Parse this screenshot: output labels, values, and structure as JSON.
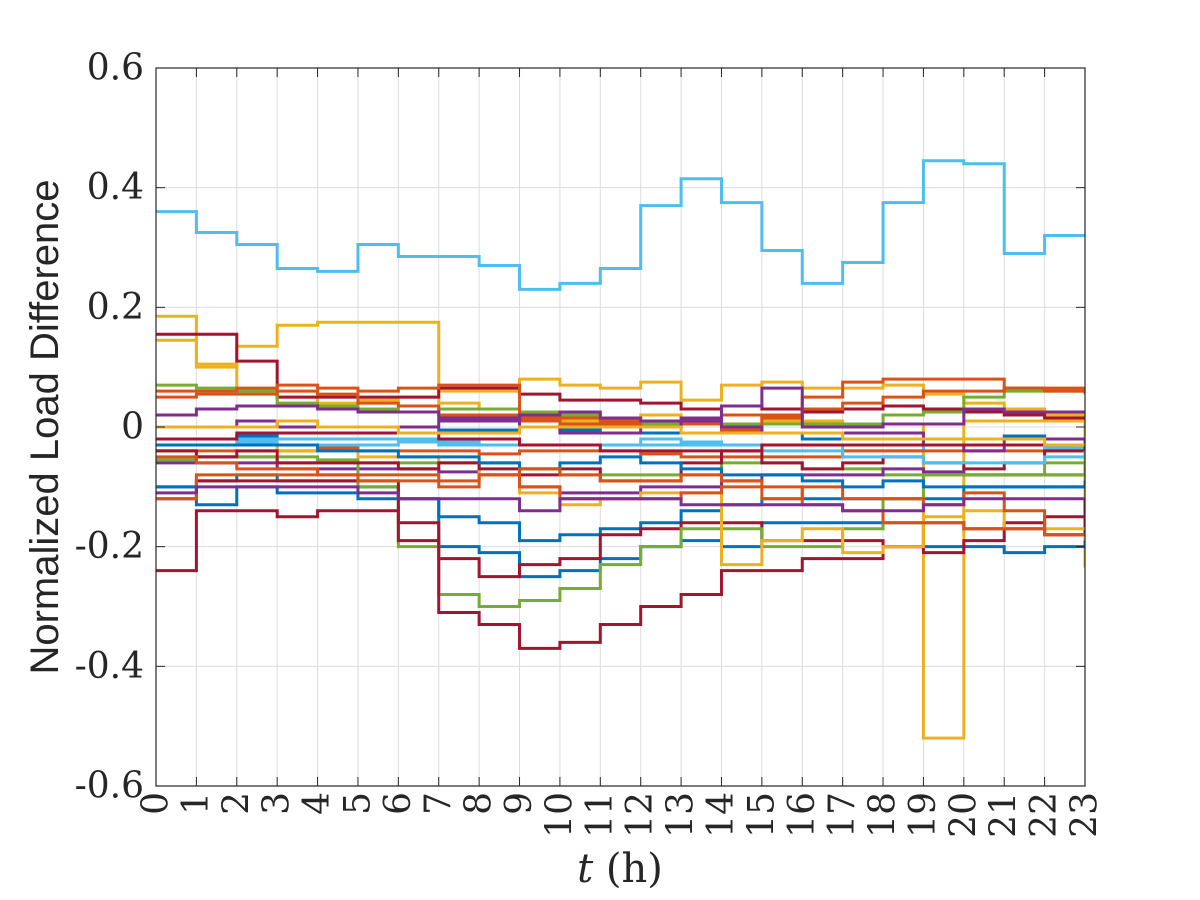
{
  "chart_data": {
    "type": "line",
    "step": true,
    "xlabel_var": "t",
    "xlabel_unit": " (h)",
    "ylabel": "Normalized Load Difference",
    "xlim": [
      0,
      23
    ],
    "ylim": [
      -0.6,
      0.6
    ],
    "x_ticks": [
      "0",
      "1",
      "2",
      "3",
      "4",
      "5",
      "6",
      "7",
      "8",
      "9",
      "10",
      "11",
      "12",
      "13",
      "14",
      "15",
      "16",
      "17",
      "18",
      "19",
      "20",
      "21",
      "22",
      "23"
    ],
    "y_ticks": [
      "0.6",
      "0.4",
      "0.2",
      "0",
      "-0.2",
      "-0.4",
      "-0.6"
    ],
    "y_tick_values": [
      0.6,
      0.4,
      0.2,
      0,
      -0.2,
      -0.4,
      -0.6
    ],
    "grid": true,
    "box": true,
    "colors": {
      "blue": "#0072bd",
      "orange": "#d95319",
      "yellow": "#edb120",
      "purple": "#7e2f8e",
      "green": "#77ac30",
      "cyan": "#4dbeee",
      "red": "#a2142f"
    },
    "series": [
      {
        "color": "cyan",
        "values": [
          0.36,
          0.325,
          0.305,
          0.265,
          0.26,
          0.305,
          0.285,
          0.285,
          0.27,
          0.23,
          0.24,
          0.265,
          0.37,
          0.415,
          0.375,
          0.295,
          0.24,
          0.275,
          0.375,
          0.445,
          0.44,
          0.29,
          0.32,
          0.32
        ]
      },
      {
        "color": "yellow",
        "values": [
          0.185,
          0.1,
          0.135,
          0.17,
          0.175,
          0.175,
          0.175,
          0.04,
          0.03,
          0.025,
          0.01,
          0.005,
          0.02,
          0.005,
          0.005,
          0.01,
          0.01,
          0.005,
          0.005,
          -0.52,
          0.01,
          0.01,
          0.01,
          -0.235
        ]
      },
      {
        "color": "yellow",
        "values": [
          0.145,
          0.105,
          0.06,
          0.05,
          0.04,
          0.045,
          0.05,
          0.06,
          0.06,
          0.08,
          0.07,
          0.065,
          0.075,
          0.045,
          0.07,
          0.075,
          0.065,
          0.065,
          0.07,
          0.055,
          0.04,
          0.03,
          0.02,
          -0.02
        ]
      },
      {
        "color": "red",
        "values": [
          0.155,
          0.155,
          0.11,
          0.05,
          0.05,
          0.05,
          0.05,
          0.065,
          0.065,
          0.055,
          0.045,
          0.045,
          0.04,
          0.03,
          0.035,
          0.03,
          0.025,
          0.03,
          0.035,
          0.03,
          0.025,
          0.02,
          0.015,
          0.015
        ]
      },
      {
        "color": "green",
        "values": [
          0.07,
          0.065,
          0.06,
          0.04,
          0.035,
          0.03,
          0.025,
          0.03,
          0.03,
          0.025,
          0.02,
          0.01,
          0.005,
          0.005,
          0.005,
          0.005,
          0.005,
          0.005,
          0.02,
          0.025,
          0.05,
          0.06,
          0.06,
          0.055
        ]
      },
      {
        "color": "orange",
        "values": [
          0.06,
          0.06,
          0.065,
          0.07,
          0.065,
          0.06,
          0.065,
          0.07,
          0.07,
          0.015,
          0.015,
          0.01,
          0.01,
          0.005,
          0.02,
          0.015,
          0.05,
          0.075,
          0.08,
          0.08,
          0.08,
          0.065,
          0.065,
          0.06
        ]
      },
      {
        "color": "orange",
        "values": [
          0.05,
          0.055,
          0.055,
          0.06,
          0.055,
          0.04,
          0.035,
          0.02,
          0.02,
          0.01,
          0.005,
          0.005,
          0.0,
          0.005,
          -0.005,
          0.02,
          0.03,
          0.04,
          0.05,
          0.06,
          0.06,
          0.065,
          0.06,
          0.055
        ]
      },
      {
        "color": "purple",
        "values": [
          0.02,
          0.03,
          0.035,
          0.035,
          0.03,
          0.025,
          0.025,
          0.015,
          0.015,
          0.02,
          0.025,
          0.015,
          0.01,
          0.015,
          0.035,
          0.065,
          0.0,
          0.0,
          0.005,
          0.005,
          0.03,
          0.025,
          0.025,
          0.025
        ]
      },
      {
        "color": "blue",
        "values": [
          -0.02,
          -0.02,
          -0.015,
          -0.01,
          -0.01,
          -0.01,
          -0.01,
          -0.005,
          -0.005,
          0.0,
          -0.005,
          -0.01,
          -0.01,
          -0.01,
          -0.01,
          -0.01,
          -0.02,
          -0.02,
          -0.02,
          -0.02,
          -0.02,
          -0.015,
          -0.02,
          -0.02
        ]
      },
      {
        "color": "cyan",
        "values": [
          -0.03,
          -0.03,
          -0.025,
          -0.03,
          -0.03,
          -0.03,
          -0.025,
          -0.025,
          -0.03,
          -0.03,
          -0.03,
          -0.03,
          -0.02,
          -0.025,
          -0.03,
          -0.03,
          -0.03,
          -0.04,
          -0.04,
          -0.03,
          -0.03,
          -0.03,
          -0.035,
          -0.035
        ]
      },
      {
        "color": "orange",
        "values": [
          -0.04,
          -0.04,
          -0.04,
          -0.04,
          -0.035,
          -0.04,
          -0.04,
          -0.04,
          -0.045,
          -0.04,
          -0.04,
          -0.04,
          -0.045,
          -0.05,
          -0.05,
          -0.05,
          -0.05,
          -0.04,
          -0.04,
          -0.04,
          -0.04,
          -0.04,
          -0.04,
          -0.04
        ]
      },
      {
        "color": "green",
        "values": [
          -0.055,
          -0.05,
          -0.05,
          -0.05,
          -0.055,
          -0.06,
          -0.06,
          -0.06,
          -0.06,
          -0.07,
          -0.08,
          -0.08,
          -0.08,
          -0.08,
          -0.06,
          -0.06,
          -0.07,
          -0.07,
          -0.08,
          -0.08,
          -0.08,
          -0.08,
          -0.06,
          -0.06
        ]
      },
      {
        "color": "purple",
        "values": [
          -0.06,
          -0.06,
          -0.06,
          -0.07,
          -0.07,
          -0.07,
          -0.07,
          -0.075,
          -0.08,
          -0.1,
          -0.11,
          -0.11,
          -0.1,
          -0.1,
          -0.09,
          -0.08,
          -0.08,
          -0.08,
          -0.07,
          -0.075,
          -0.08,
          -0.08,
          -0.08,
          -0.08
        ]
      },
      {
        "color": "blue",
        "values": [
          -0.1,
          -0.13,
          -0.1,
          -0.11,
          -0.11,
          -0.12,
          -0.12,
          -0.15,
          -0.16,
          -0.19,
          -0.18,
          -0.17,
          -0.16,
          -0.14,
          -0.13,
          -0.12,
          -0.12,
          -0.12,
          -0.12,
          -0.12,
          -0.1,
          -0.1,
          -0.1,
          -0.1
        ]
      },
      {
        "color": "blue",
        "values": [
          -0.1,
          -0.09,
          -0.08,
          -0.09,
          -0.09,
          -0.1,
          -0.12,
          -0.2,
          -0.21,
          -0.25,
          -0.24,
          -0.22,
          -0.2,
          -0.19,
          -0.2,
          -0.16,
          -0.16,
          -0.16,
          -0.16,
          -0.2,
          -0.2,
          -0.21,
          -0.2,
          -0.19
        ]
      },
      {
        "color": "red",
        "values": [
          -0.24,
          -0.14,
          -0.14,
          -0.15,
          -0.14,
          -0.14,
          -0.16,
          -0.22,
          -0.25,
          -0.23,
          -0.22,
          -0.18,
          -0.17,
          -0.16,
          -0.16,
          -0.19,
          -0.19,
          -0.19,
          -0.2,
          -0.16,
          -0.17,
          -0.17,
          -0.15,
          -0.12
        ]
      },
      {
        "color": "green",
        "values": [
          -0.04,
          -0.05,
          -0.05,
          -0.06,
          -0.06,
          -0.1,
          -0.2,
          -0.28,
          -0.3,
          -0.29,
          -0.27,
          -0.23,
          -0.2,
          -0.17,
          -0.17,
          -0.2,
          -0.2,
          -0.17,
          -0.12,
          -0.08,
          -0.08,
          -0.08,
          -0.08,
          -0.06
        ]
      },
      {
        "color": "red",
        "values": [
          -0.12,
          -0.09,
          -0.09,
          -0.09,
          -0.09,
          -0.09,
          -0.19,
          -0.31,
          -0.33,
          -0.37,
          -0.36,
          -0.33,
          -0.3,
          -0.28,
          -0.24,
          -0.24,
          -0.22,
          -0.22,
          -0.2,
          -0.21,
          -0.19,
          -0.16,
          -0.18,
          -0.14
        ]
      },
      {
        "color": "yellow",
        "values": [
          -0.03,
          -0.03,
          -0.03,
          -0.04,
          -0.04,
          -0.05,
          -0.05,
          -0.06,
          -0.08,
          -0.11,
          -0.13,
          -0.12,
          -0.11,
          -0.11,
          -0.23,
          -0.19,
          -0.17,
          -0.21,
          -0.2,
          -0.15,
          -0.14,
          -0.17,
          -0.17,
          -0.17
        ]
      },
      {
        "color": "red",
        "values": [
          -0.04,
          -0.05,
          -0.04,
          -0.06,
          -0.06,
          -0.06,
          -0.07,
          -0.06,
          -0.07,
          -0.08,
          -0.07,
          -0.09,
          -0.09,
          -0.06,
          -0.04,
          -0.06,
          -0.07,
          -0.06,
          -0.05,
          -0.06,
          -0.07,
          -0.06,
          -0.04,
          -0.02
        ]
      },
      {
        "color": "orange",
        "values": [
          -0.05,
          -0.06,
          -0.07,
          -0.07,
          -0.08,
          -0.08,
          -0.08,
          -0.1,
          -0.08,
          -0.1,
          -0.12,
          -0.12,
          -0.12,
          -0.11,
          -0.1,
          -0.12,
          -0.1,
          -0.12,
          -0.12,
          -0.13,
          -0.11,
          -0.14,
          -0.18,
          -0.18
        ]
      },
      {
        "color": "purple",
        "values": [
          0.0,
          0.0,
          0.01,
          0.0,
          0.0,
          0.0,
          0.0,
          0.01,
          0.01,
          0.0,
          -0.01,
          -0.01,
          0.0,
          0.01,
          0.0,
          -0.01,
          -0.01,
          -0.01,
          -0.01,
          -0.03,
          -0.04,
          -0.02,
          -0.02,
          -0.03
        ]
      },
      {
        "color": "blue",
        "values": [
          -0.03,
          -0.03,
          -0.03,
          -0.03,
          -0.04,
          -0.04,
          -0.05,
          -0.05,
          -0.06,
          -0.07,
          -0.06,
          -0.05,
          -0.06,
          -0.07,
          -0.08,
          -0.08,
          -0.09,
          -0.1,
          -0.09,
          -0.1,
          -0.1,
          -0.1,
          -0.1,
          -0.09
        ]
      },
      {
        "color": "cyan",
        "values": [
          -0.02,
          -0.02,
          -0.02,
          -0.02,
          -0.02,
          -0.02,
          -0.02,
          -0.03,
          -0.03,
          -0.03,
          -0.03,
          -0.03,
          -0.03,
          -0.03,
          -0.03,
          -0.04,
          -0.04,
          -0.05,
          -0.05,
          -0.06,
          -0.06,
          -0.06,
          -0.05,
          -0.04
        ]
      },
      {
        "color": "red",
        "values": [
          -0.02,
          -0.02,
          -0.01,
          -0.01,
          -0.01,
          -0.01,
          -0.01,
          -0.02,
          -0.02,
          -0.03,
          -0.03,
          -0.04,
          -0.04,
          -0.04,
          -0.04,
          -0.03,
          -0.03,
          -0.03,
          -0.03,
          -0.03,
          -0.03,
          -0.03,
          -0.03,
          -0.03
        ]
      },
      {
        "color": "yellow",
        "values": [
          0.0,
          0.0,
          0.0,
          0.01,
          0.0,
          0.0,
          -0.01,
          -0.01,
          -0.01,
          0.0,
          0.0,
          0.0,
          0.0,
          -0.01,
          -0.01,
          -0.01,
          -0.01,
          -0.02,
          -0.02,
          -0.02,
          -0.02,
          -0.02,
          -0.03,
          -0.03
        ]
      },
      {
        "color": "orange",
        "values": [
          -0.12,
          -0.08,
          -0.08,
          -0.08,
          -0.08,
          -0.09,
          -0.09,
          -0.09,
          -0.08,
          -0.07,
          -0.08,
          -0.09,
          -0.09,
          -0.08,
          -0.09,
          -0.1,
          -0.13,
          -0.14,
          -0.16,
          -0.16,
          -0.17,
          -0.17,
          -0.18,
          -0.18
        ]
      },
      {
        "color": "purple",
        "values": [
          -0.11,
          -0.1,
          -0.1,
          -0.1,
          -0.1,
          -0.11,
          -0.12,
          -0.12,
          -0.12,
          -0.14,
          -0.12,
          -0.12,
          -0.12,
          -0.13,
          -0.13,
          -0.13,
          -0.13,
          -0.14,
          -0.14,
          -0.13,
          -0.12,
          -0.12,
          -0.12,
          -0.12
        ]
      }
    ]
  }
}
